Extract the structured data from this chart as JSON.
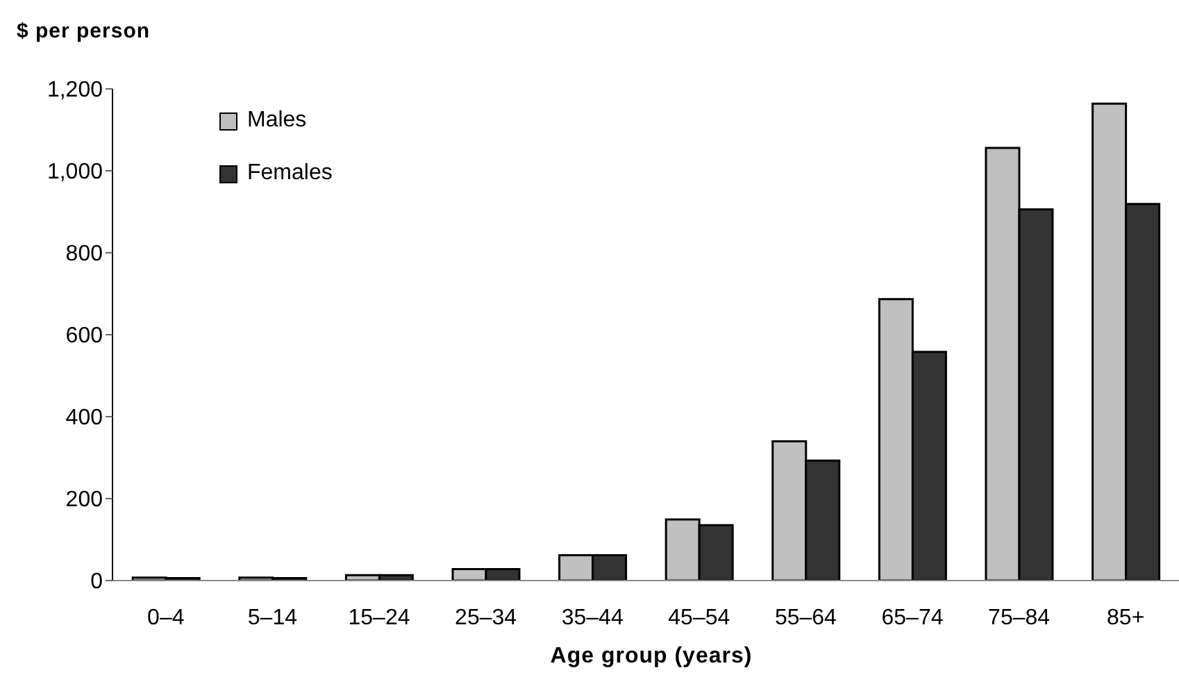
{
  "chart_data": {
    "type": "bar",
    "ylabel": "$ per person",
    "xlabel": "Age group (years)",
    "categories": [
      "0–4",
      "5–14",
      "15–24",
      "25–34",
      "35–44",
      "45–54",
      "55–64",
      "65–74",
      "75–84",
      "85+"
    ],
    "series": [
      {
        "name": "Males",
        "color": "#c0c0c0",
        "values": [
          7,
          7,
          13,
          28,
          62,
          149,
          340,
          687,
          1056,
          1164
        ]
      },
      {
        "name": "Females",
        "color": "#333333",
        "values": [
          6,
          6,
          13,
          28,
          62,
          135,
          293,
          558,
          906,
          919
        ]
      }
    ],
    "ylim": [
      0,
      1200
    ],
    "yticks": [
      0,
      {
        "value": 200,
        "label": "200"
      },
      {
        "value": 400,
        "label": "400"
      },
      {
        "value": 600,
        "label": "600"
      },
      {
        "value": 800,
        "label": "800"
      },
      {
        "value": 1000,
        "label": "1,000"
      },
      {
        "value": 1200,
        "label": "1,200"
      }
    ],
    "grid": false,
    "legend": "top left"
  }
}
